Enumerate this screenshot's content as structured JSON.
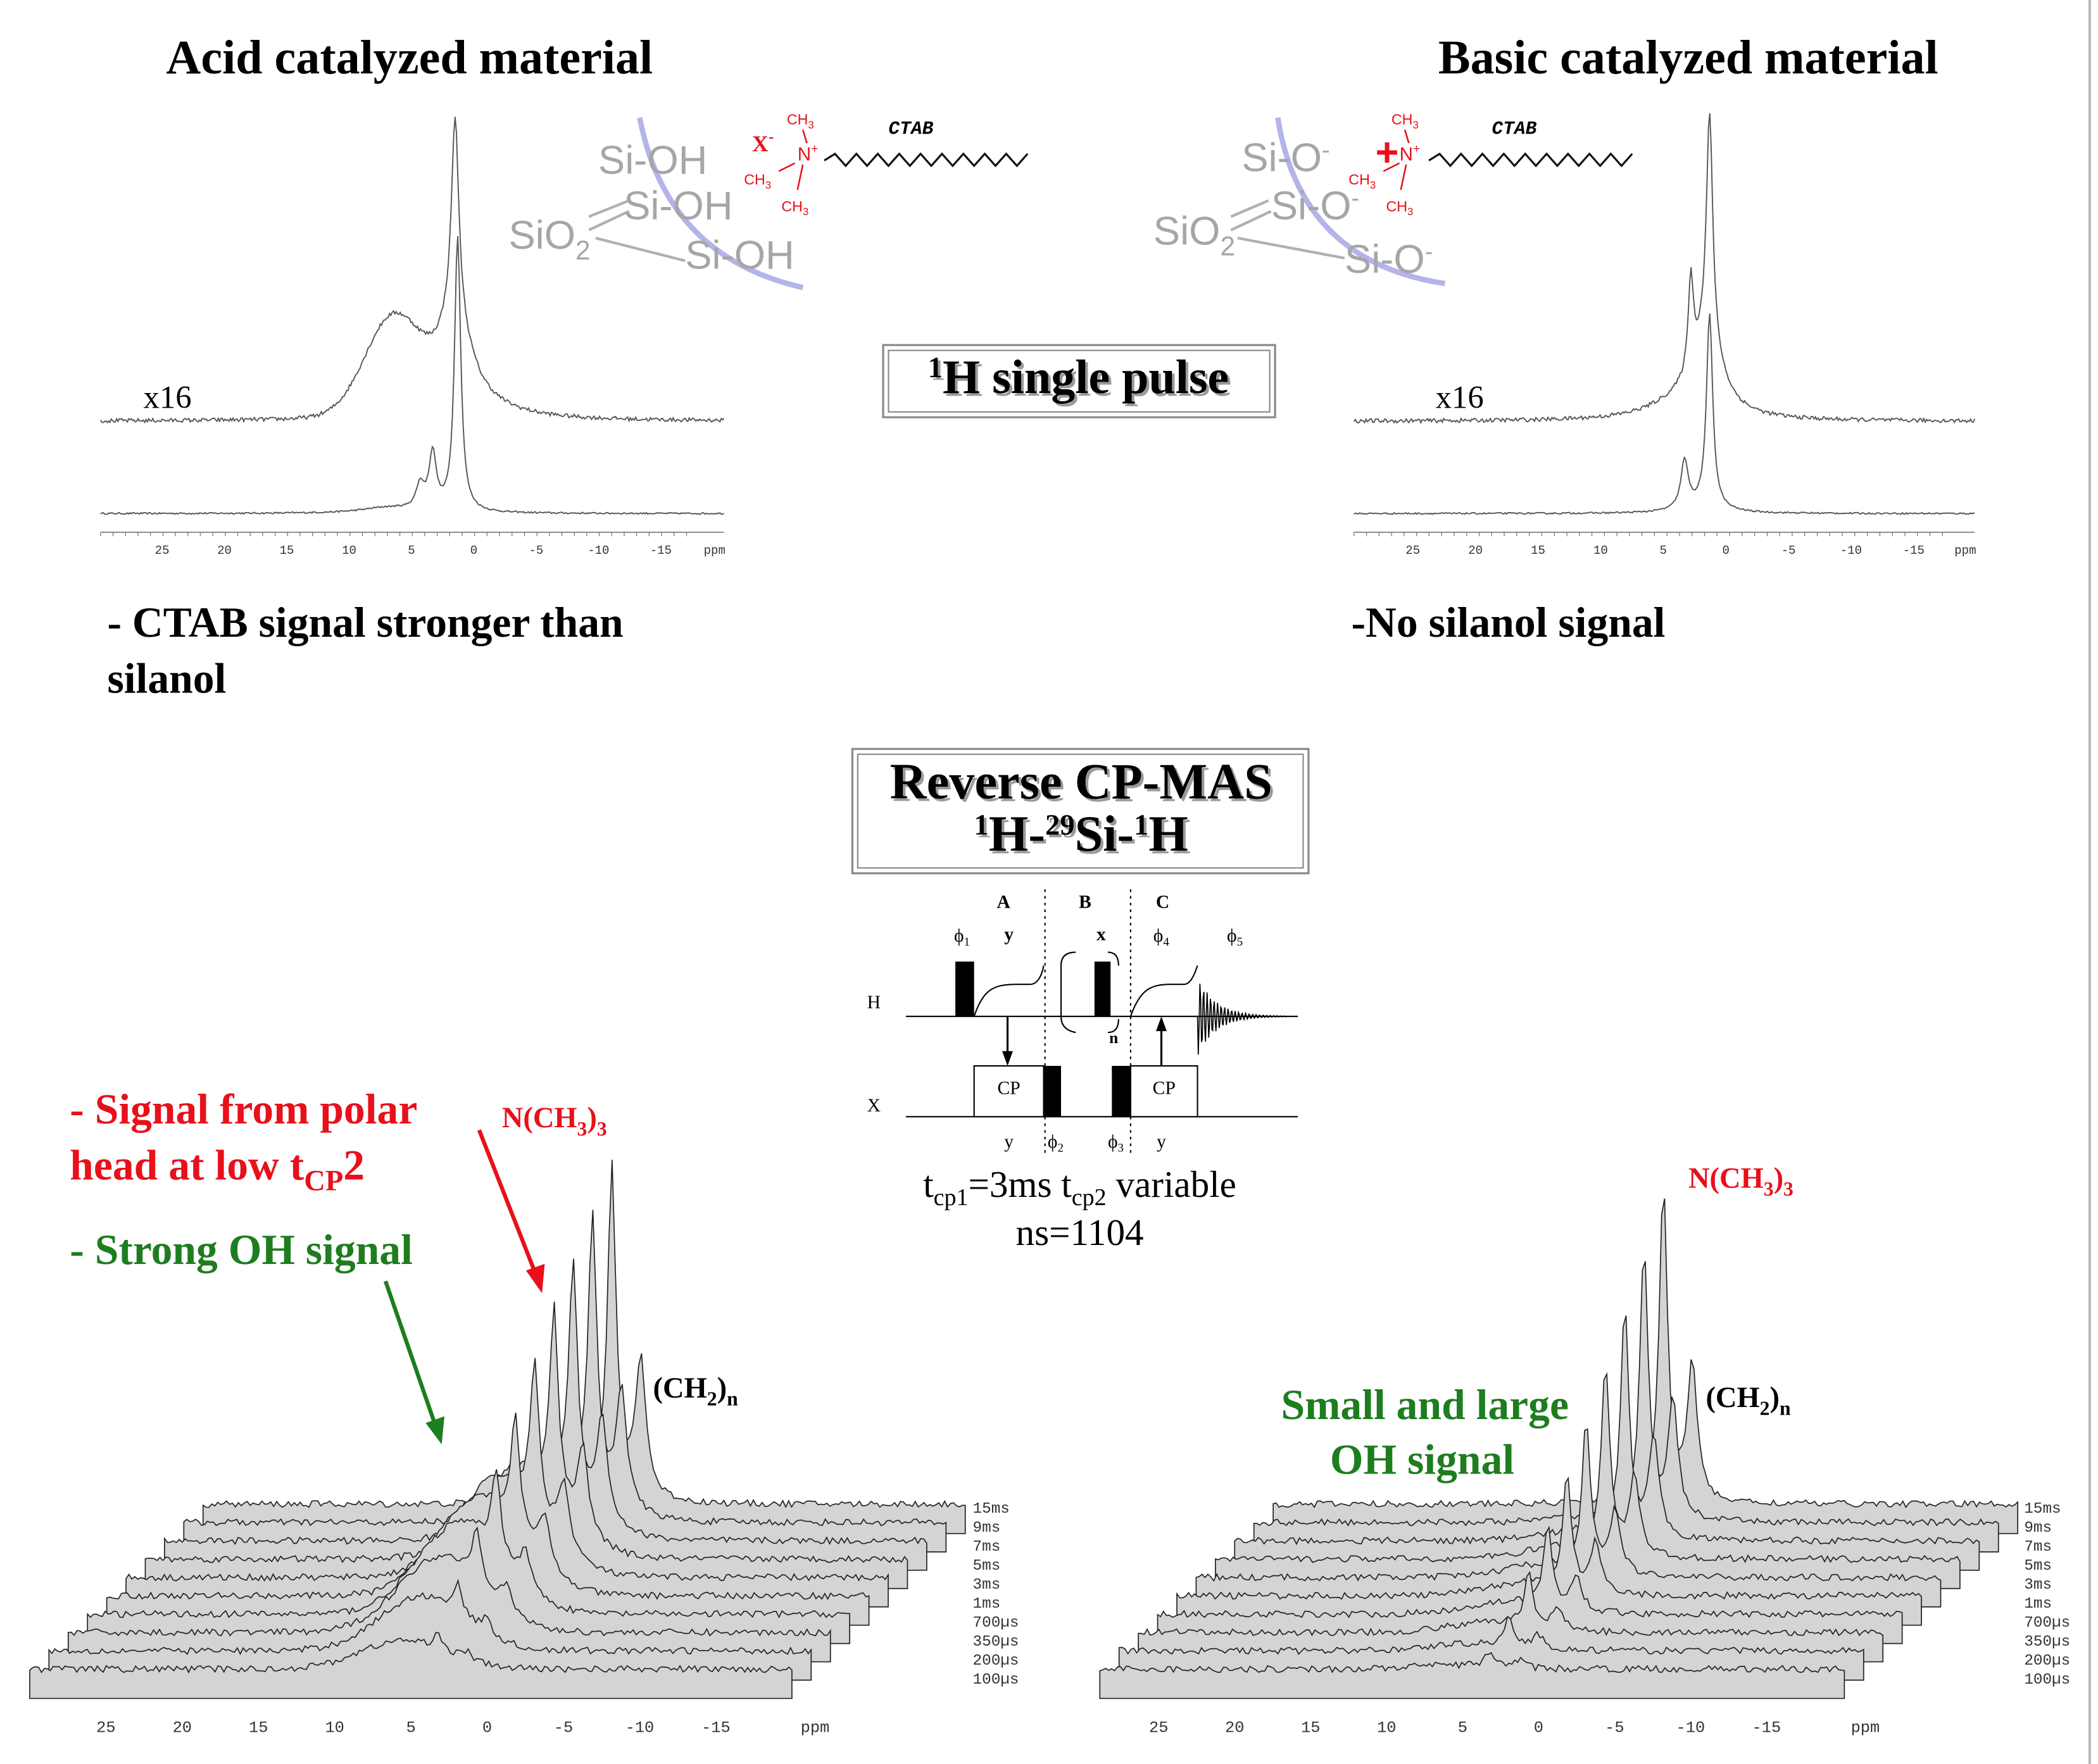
{
  "acid": {
    "title": "Acid catalyzed material",
    "scale": "x16",
    "ticks": [
      "25",
      "20",
      "15",
      "10",
      "5",
      "0",
      "-5",
      "-10",
      "-15"
    ],
    "unit": "ppm",
    "note_line1": "- CTAB signal stronger than",
    "note_line2": "silanol",
    "surface": {
      "groups": [
        "Si-OH",
        "Si-OH",
        "Si-OH"
      ],
      "silica": "SiO",
      "silica_sub": "2"
    },
    "surfactant": {
      "counterion": "X",
      "counterion_sup": "-",
      "nitrogen": "N",
      "nitrogen_sup": "+",
      "methyl": "CH",
      "methyl_sub": "3",
      "name": "CTAB"
    }
  },
  "basic": {
    "title": "Basic catalyzed material",
    "scale": "x16",
    "ticks": [
      "25",
      "20",
      "15",
      "10",
      "5",
      "0",
      "-5",
      "-10",
      "-15"
    ],
    "unit": "ppm",
    "note": "-No silanol signal",
    "surface": {
      "groups": [
        "Si-O",
        "Si-O",
        "Si-O"
      ],
      "group_sup": "-",
      "silica": "SiO",
      "silica_sub": "2"
    },
    "surfactant": {
      "counterion": "+",
      "nitrogen": "N",
      "nitrogen_sup": "+",
      "methyl": "CH",
      "methyl_sub": "3",
      "name": "CTAB"
    }
  },
  "single_pulse": {
    "sup": "1",
    "text": "H single pulse"
  },
  "cp_mas": {
    "line1": "Reverse CP-MAS",
    "line2_parts": [
      "1",
      "H-",
      "29",
      "Si-",
      "1",
      "H"
    ]
  },
  "sequence": {
    "periods": [
      "A",
      "B",
      "C"
    ],
    "channels": [
      "H",
      "X"
    ],
    "phase_symbol": "ϕ",
    "phase_indices": [
      "1",
      "2",
      "3",
      "4",
      "5"
    ],
    "top_phases": [
      "y",
      "x"
    ],
    "bottom_phases": [
      "y",
      "y"
    ],
    "blocks": [
      "CP",
      "CP"
    ],
    "loop": "n"
  },
  "parameters": {
    "t": "t",
    "sub1": "cp1",
    "middle": "=3ms t",
    "sub2": "cp2",
    "end": " variable",
    "scans": "ns=1104"
  },
  "annotations": {
    "polar_line1": "- Signal from polar",
    "polar_line2": "head at low t",
    "polar_sub": "CP",
    "polar_end": "2",
    "oh": "- Strong OH signal",
    "ch3_group": "N(CH",
    "sub3": "3",
    "close": ")",
    "ch2_group": "(CH",
    "sub2": "2",
    "n": "n",
    "small_line1": "Small and large",
    "small_line2": "OH signal"
  },
  "stacked": {
    "ticks": [
      "25",
      "20",
      "15",
      "10",
      "5",
      "0",
      "-5",
      "-10",
      "-15"
    ],
    "unit": "ppm",
    "contact_times": [
      "15ms",
      "9ms",
      "7ms",
      "5ms",
      "3ms",
      "1ms",
      "700µs",
      "350µs",
      "200µs",
      "100µs"
    ]
  }
}
